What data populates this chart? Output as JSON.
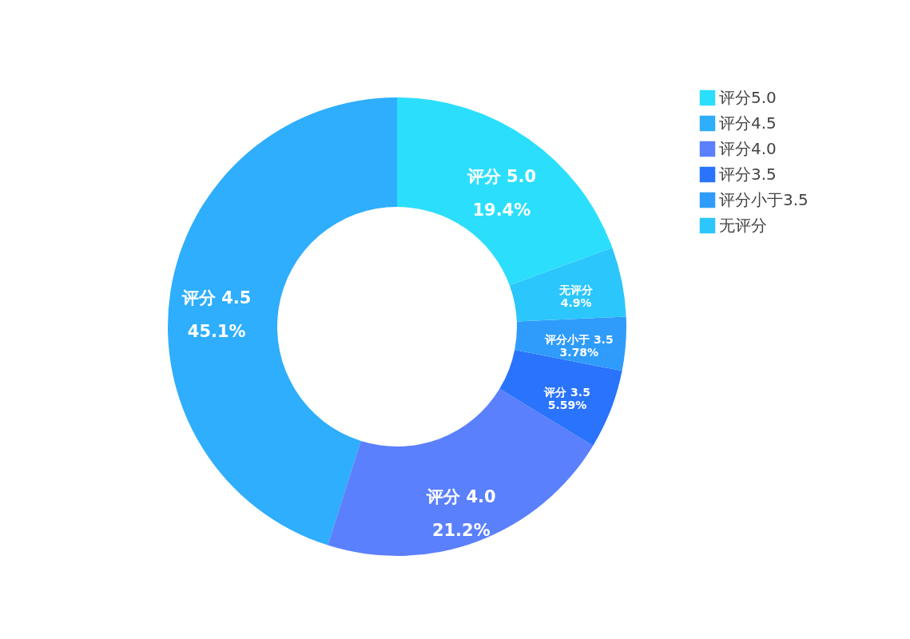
{
  "chart_data": {
    "type": "donut",
    "categories": [
      "评分5.0",
      "评分4.5",
      "评分4.0",
      "评分3.5",
      "评分小于3.5",
      "无评分"
    ],
    "values": [
      19.4,
      45.1,
      21.2,
      5.59,
      3.78,
      4.9
    ],
    "colors": [
      "#2bdffc",
      "#2eaefd",
      "#5b80fd",
      "#2a73fc",
      "#2f9cfb",
      "#2bc6fc"
    ],
    "value_labels": [
      "评分 5.0\n19.4%",
      "评分 4.5\n45.1%",
      "评分 4.0\n21.2%",
      "评分 3.5\n5.59%",
      "评分小于 3.5\n3.78%",
      "无评分\n4.9%"
    ],
    "legend": "top right"
  }
}
